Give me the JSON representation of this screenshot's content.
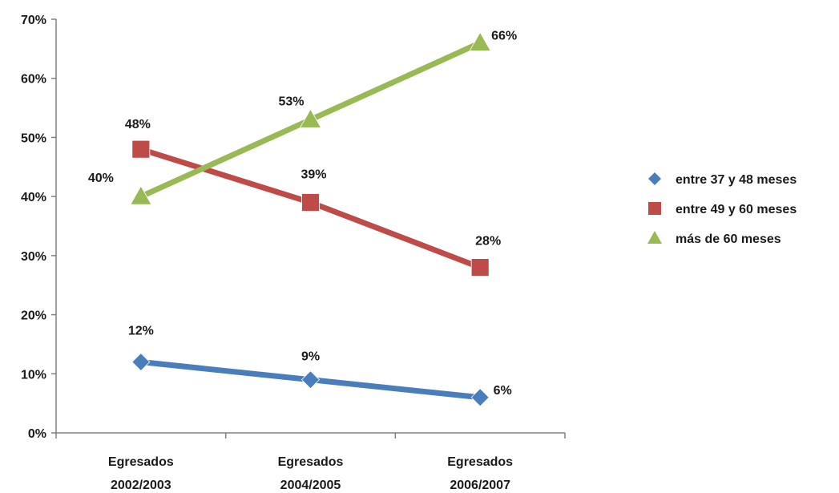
{
  "chart_data": {
    "type": "line",
    "title": "",
    "xlabel": "",
    "ylabel": "",
    "ylim": [
      0,
      70
    ],
    "y_ticks": [
      "0%",
      "10%",
      "20%",
      "30%",
      "40%",
      "50%",
      "60%",
      "70%"
    ],
    "y_tick_values": [
      0,
      10,
      20,
      30,
      40,
      50,
      60,
      70
    ],
    "categories": [
      [
        "Egresados",
        "2002/2003"
      ],
      [
        "Egresados",
        "2004/2005"
      ],
      [
        "Egresados",
        "2006/2007"
      ]
    ],
    "legend_position": "right",
    "grid": false,
    "series": [
      {
        "name": "entre 37 y 48 meses",
        "values": [
          12,
          9,
          6
        ],
        "labels": [
          "12%",
          "9%",
          "6%"
        ],
        "color": "#4a7ebb",
        "marker": "diamond"
      },
      {
        "name": "entre 49 y 60 meses",
        "values": [
          48,
          39,
          28
        ],
        "labels": [
          "48%",
          "39%",
          "28%"
        ],
        "color": "#be4b48",
        "marker": "square"
      },
      {
        "name": "más de 60 meses",
        "values": [
          40,
          53,
          66
        ],
        "labels": [
          "40%",
          "53%",
          "66%"
        ],
        "color": "#98b954",
        "marker": "triangle"
      }
    ]
  }
}
